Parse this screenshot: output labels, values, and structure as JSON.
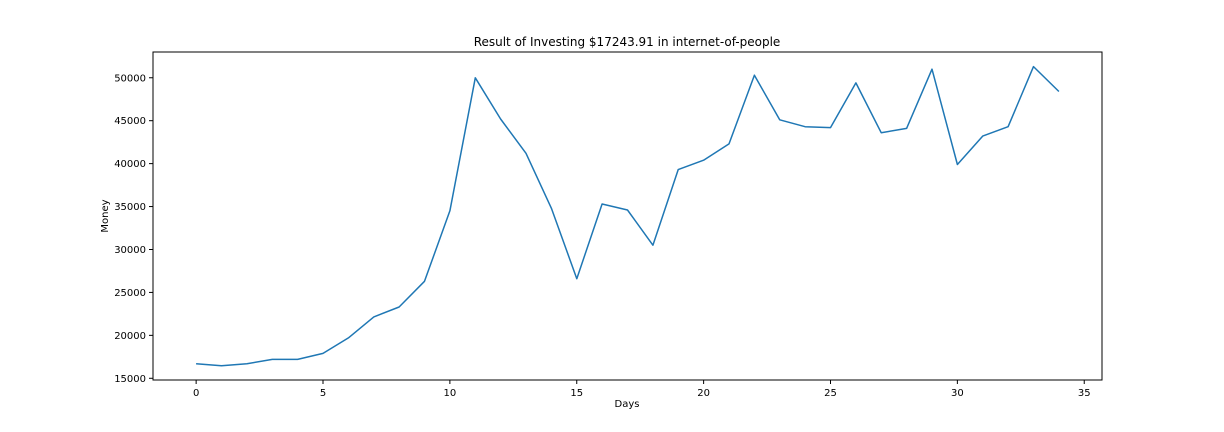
{
  "chart_data": {
    "type": "line",
    "title": "Result of Investing $17243.91 in internet-of-people",
    "xlabel": "Days",
    "ylabel": "Money",
    "xlim": [
      -1.7,
      35.7
    ],
    "ylim": [
      14800,
      53000
    ],
    "xticks": [
      0,
      5,
      10,
      15,
      20,
      25,
      30,
      35
    ],
    "yticks": [
      15000,
      20000,
      25000,
      30000,
      35000,
      40000,
      45000,
      50000
    ],
    "grid": false,
    "legend": "none",
    "series": [
      {
        "color": "#1f77b4",
        "x": [
          0,
          1,
          2,
          3,
          4,
          5,
          6,
          7,
          8,
          9,
          10,
          11,
          12,
          13,
          14,
          15,
          16,
          17,
          18,
          19,
          20,
          21,
          22,
          23,
          24,
          25,
          26,
          27,
          28,
          29,
          30,
          31,
          32,
          33,
          34
        ],
        "y": [
          16700,
          16450,
          16700,
          17200,
          17200,
          17900,
          19700,
          22150,
          23300,
          26300,
          34500,
          50000,
          45200,
          41200,
          34800,
          26600,
          35300,
          34600,
          30500,
          39300,
          40400,
          42300,
          50300,
          45100,
          44300,
          44200,
          49400,
          43600,
          44100,
          51000,
          39900,
          43200,
          44300,
          51300,
          48400
        ]
      }
    ]
  }
}
